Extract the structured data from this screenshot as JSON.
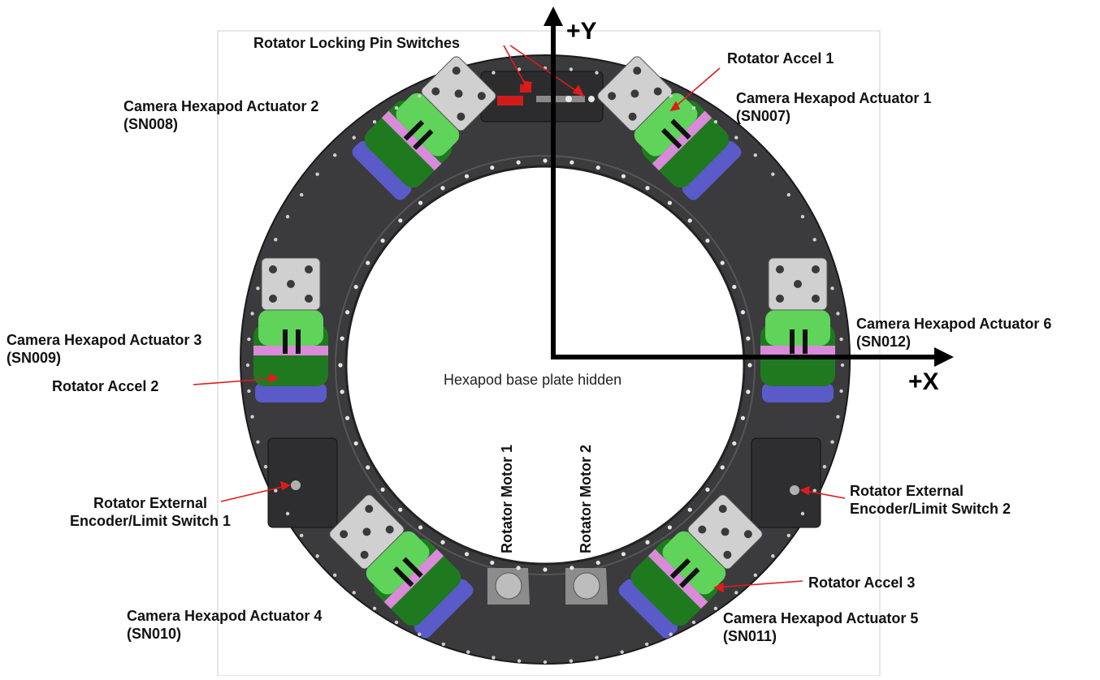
{
  "labels": {
    "locking_pins": "Rotator Locking Pin Switches",
    "accel1": "Rotator Accel 1",
    "act1_name": "Camera Hexapod Actuator 1",
    "act1_sn": "(SN007)",
    "act2_name": "Camera Hexapod Actuator 2",
    "act2_sn": "(SN008)",
    "act3_name": "Camera Hexapod Actuator 3",
    "act3_sn": "(SN009)",
    "accel2": "Rotator Accel 2",
    "act6_name": "Camera Hexapod Actuator 6",
    "act6_sn": "(SN012)",
    "base_hidden": "Hexapod base plate hidden",
    "motor1": "Rotator Motor 1",
    "motor2": "Rotator Motor 2",
    "enc1_line1": "Rotator External",
    "enc1_line2": "Encoder/Limit Switch 1",
    "enc2_line1": "Rotator External",
    "enc2_line2": "Encoder/Limit Switch 2",
    "accel3": "Rotator Accel 3",
    "act4_name": "Camera Hexapod Actuator 4",
    "act4_sn": "(SN010)",
    "act5_name": "Camera Hexapod Actuator 5",
    "act5_sn": "(SN011)"
  },
  "axes": {
    "y": "+Y",
    "x": "+X"
  },
  "colors": {
    "ring": "#3b3b3d",
    "actuator_green": "#5fd35a",
    "actuator_dark_green": "#1f7a1f",
    "actuator_pink": "#d98ad9",
    "actuator_blue": "#5a5ac8",
    "mount_plate": "#d0d0d0",
    "callout_line": "#e01b1b"
  }
}
